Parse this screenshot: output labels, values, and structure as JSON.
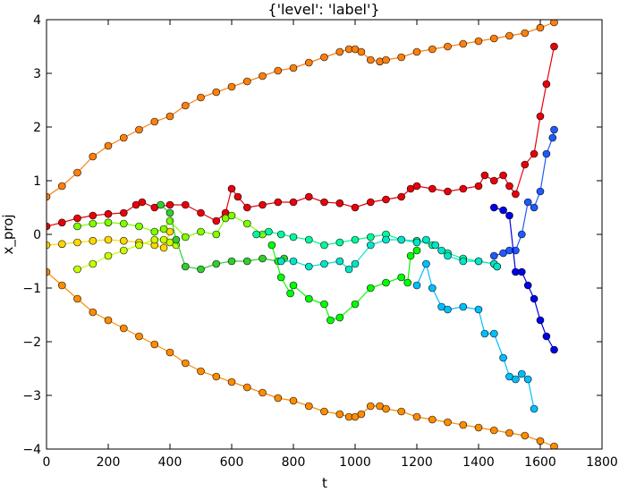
{
  "chart_data": {
    "type": "line",
    "title": "{'level': 'label'}",
    "xlabel": "t",
    "ylabel": "x_proj",
    "xlim": [
      0,
      1800
    ],
    "ylim": [
      -4,
      4
    ],
    "xticks": [
      0,
      200,
      400,
      600,
      800,
      1000,
      1200,
      1400,
      1600,
      1800
    ],
    "yticks": [
      -4,
      -3,
      -2,
      -1,
      0,
      1,
      2,
      3,
      4
    ],
    "grid": false,
    "legend": "none",
    "marker": "circle",
    "series": [
      {
        "color": "#ff7f0e",
        "x": [
          0,
          50,
          100,
          150,
          200,
          250,
          300,
          350,
          400,
          450,
          500,
          550,
          600,
          650,
          700,
          750,
          800,
          850,
          900,
          950,
          980,
          1000,
          1020,
          1050,
          1080,
          1100,
          1150,
          1200,
          1250,
          1300,
          1350,
          1400,
          1450,
          1500,
          1550,
          1600,
          1645
        ],
        "y": [
          0.7,
          0.9,
          1.15,
          1.45,
          1.65,
          1.8,
          1.95,
          2.1,
          2.2,
          2.4,
          2.55,
          2.65,
          2.75,
          2.85,
          2.95,
          3.05,
          3.1,
          3.2,
          3.3,
          3.4,
          3.45,
          3.45,
          3.4,
          3.25,
          3.22,
          3.25,
          3.3,
          3.4,
          3.45,
          3.5,
          3.55,
          3.6,
          3.65,
          3.7,
          3.75,
          3.85,
          3.95
        ]
      },
      {
        "color": "#ff8c00",
        "x": [
          0,
          50,
          100,
          150,
          200,
          250,
          300,
          350,
          400,
          450,
          500,
          550,
          600,
          650,
          700,
          750,
          800,
          850,
          900,
          950,
          980,
          1000,
          1020,
          1050,
          1080,
          1100,
          1150,
          1200,
          1250,
          1300,
          1350,
          1400,
          1450,
          1500,
          1550,
          1600,
          1645
        ],
        "y": [
          -0.7,
          -0.95,
          -1.2,
          -1.45,
          -1.6,
          -1.75,
          -1.9,
          -2.05,
          -2.2,
          -2.4,
          -2.55,
          -2.65,
          -2.75,
          -2.85,
          -2.95,
          -3.05,
          -3.1,
          -3.2,
          -3.3,
          -3.35,
          -3.4,
          -3.4,
          -3.35,
          -3.2,
          -3.2,
          -3.25,
          -3.3,
          -3.4,
          -3.45,
          -3.5,
          -3.55,
          -3.6,
          -3.65,
          -3.7,
          -3.75,
          -3.85,
          -3.95
        ]
      },
      {
        "color": "#e8000b",
        "x": [
          0,
          50,
          100,
          150,
          200,
          250,
          290,
          310,
          350,
          400,
          450,
          500,
          550,
          580,
          600,
          620,
          650,
          700,
          750,
          800,
          850,
          900,
          950,
          1000,
          1050,
          1100,
          1150,
          1180,
          1200,
          1250,
          1300,
          1350,
          1400,
          1420,
          1450,
          1480,
          1500,
          1520,
          1550,
          1580,
          1600,
          1620,
          1645
        ],
        "y": [
          0.15,
          0.22,
          0.3,
          0.35,
          0.38,
          0.4,
          0.55,
          0.6,
          0.5,
          0.55,
          0.55,
          0.4,
          0.25,
          0.4,
          0.85,
          0.7,
          0.5,
          0.55,
          0.6,
          0.6,
          0.7,
          0.6,
          0.58,
          0.5,
          0.6,
          0.65,
          0.7,
          0.85,
          0.9,
          0.85,
          0.8,
          0.85,
          0.9,
          1.1,
          1.0,
          1.1,
          0.9,
          0.75,
          1.3,
          1.5,
          2.2,
          2.8,
          3.5
        ]
      },
      {
        "color": "#ffd700",
        "x": [
          0,
          50,
          100,
          150,
          200,
          250,
          300,
          350,
          380,
          400
        ],
        "y": [
          -0.2,
          -0.18,
          -0.15,
          -0.12,
          -0.1,
          -0.12,
          -0.15,
          -0.2,
          -0.25,
          0.05
        ]
      },
      {
        "color": "#c8ff00",
        "x": [
          100,
          150,
          200,
          250,
          300,
          350,
          380,
          400,
          420
        ],
        "y": [
          -0.65,
          -0.55,
          -0.4,
          -0.3,
          -0.2,
          -0.1,
          -0.1,
          -0.15,
          -0.2
        ]
      },
      {
        "color": "#7fff00",
        "x": [
          100,
          150,
          200,
          250,
          300,
          350,
          380,
          400,
          450,
          500,
          550,
          580,
          600,
          650,
          700
        ],
        "y": [
          0.15,
          0.2,
          0.22,
          0.2,
          0.15,
          0.05,
          0.1,
          0.25,
          -0.05,
          0.05,
          0.0,
          0.3,
          0.35,
          0.2,
          0.0
        ]
      },
      {
        "color": "#32cd32",
        "x": [
          370,
          400,
          420,
          450,
          500,
          550,
          600,
          650,
          700,
          750,
          770
        ],
        "y": [
          0.55,
          0.4,
          -0.1,
          -0.6,
          -0.65,
          -0.55,
          -0.5,
          -0.5,
          -0.45,
          -0.5,
          -0.45
        ]
      },
      {
        "color": "#00ff00",
        "x": [
          730,
          760,
          790,
          800,
          850,
          900,
          920,
          950,
          1000,
          1050,
          1100,
          1150,
          1170,
          1180,
          1200
        ],
        "y": [
          -0.2,
          -0.8,
          -1.1,
          -0.95,
          -1.2,
          -1.3,
          -1.6,
          -1.55,
          -1.3,
          -1.0,
          -0.9,
          -0.8,
          -0.9,
          -0.4,
          -0.3
        ]
      },
      {
        "color": "#00fa9a",
        "x": [
          680,
          720,
          760,
          800,
          850,
          900,
          950,
          1000,
          1050,
          1100,
          1150,
          1200,
          1250,
          1300,
          1350,
          1400,
          1450,
          1460
        ],
        "y": [
          0.0,
          0.05,
          0.0,
          -0.05,
          -0.1,
          -0.2,
          -0.15,
          -0.1,
          -0.05,
          0.0,
          -0.1,
          -0.12,
          -0.2,
          -0.35,
          -0.45,
          -0.5,
          -0.55,
          -0.6
        ]
      },
      {
        "color": "#00e5c8",
        "x": [
          760,
          800,
          850,
          900,
          950,
          980,
          1000,
          1050,
          1100,
          1150,
          1200,
          1230,
          1260,
          1280,
          1300,
          1350,
          1400,
          1450,
          1460
        ],
        "y": [
          -0.5,
          -0.5,
          -0.6,
          -0.55,
          -0.5,
          -0.65,
          -0.55,
          -0.2,
          -0.1,
          -0.1,
          -0.15,
          -0.1,
          -0.2,
          -0.3,
          -0.4,
          -0.5,
          -0.5,
          -0.55,
          -0.6
        ]
      },
      {
        "color": "#00bfff",
        "x": [
          1200,
          1230,
          1250,
          1280,
          1300,
          1350,
          1400,
          1420,
          1450,
          1480,
          1500,
          1520,
          1540,
          1560,
          1580
        ],
        "y": [
          -0.95,
          -0.55,
          -1.0,
          -1.35,
          -1.4,
          -1.35,
          -1.4,
          -1.85,
          -1.85,
          -2.3,
          -2.65,
          -2.7,
          -2.6,
          -2.7,
          -3.25
        ]
      },
      {
        "color": "#1e5aff",
        "x": [
          1450,
          1480,
          1500,
          1520,
          1540,
          1560,
          1580,
          1600,
          1620,
          1640,
          1645
        ],
        "y": [
          -0.4,
          -0.35,
          -0.3,
          -0.3,
          0.0,
          0.6,
          0.5,
          0.8,
          1.5,
          1.8,
          1.95
        ]
      },
      {
        "color": "#0000e6",
        "x": [
          1450,
          1480,
          1500,
          1520,
          1540,
          1560,
          1580,
          1600,
          1620,
          1645
        ],
        "y": [
          0.5,
          0.45,
          0.35,
          -0.7,
          -0.7,
          -0.95,
          -1.2,
          -1.6,
          -1.9,
          -2.15
        ]
      }
    ]
  }
}
